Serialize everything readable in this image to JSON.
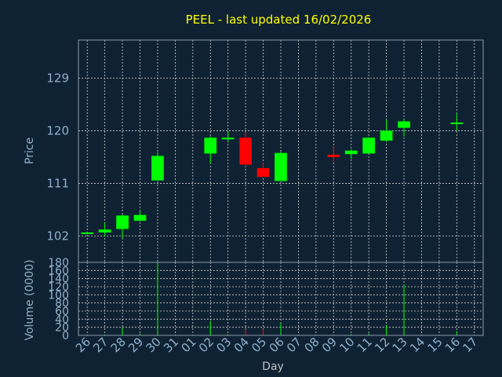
{
  "chart_data": [
    {
      "type": "candlestick",
      "title": "PEEL - last updated 16/02/2026",
      "ylabel": "Price",
      "yticks": [
        102,
        111,
        120,
        129
      ],
      "ylim": [
        97.5,
        135.5
      ],
      "categories": [
        "26",
        "27",
        "28",
        "29",
        "30",
        "31",
        "01",
        "02",
        "03",
        "04",
        "05",
        "06",
        "07",
        "08",
        "09",
        "10",
        "11",
        "12",
        "13",
        "14",
        "15",
        "16",
        "17"
      ],
      "up_color": "#00ff00",
      "down_color": "#ff0000",
      "candles": [
        {
          "day": "26",
          "open": 102.6,
          "close": 102.6,
          "high": 102.7,
          "low": 102.5
        },
        {
          "day": "27",
          "open": 102.6,
          "close": 103.1,
          "high": 104.3,
          "low": 101.9
        },
        {
          "day": "28",
          "open": 103.2,
          "close": 105.5,
          "high": 105.7,
          "low": 101.6
        },
        {
          "day": "29",
          "open": 104.6,
          "close": 105.6,
          "high": 106.4,
          "low": 104.5
        },
        {
          "day": "30",
          "open": 111.5,
          "close": 115.7,
          "high": 116.3,
          "low": 111.5
        },
        {
          "day": "02",
          "open": 116.1,
          "close": 118.8,
          "high": 119.0,
          "low": 114.4
        },
        {
          "day": "03",
          "open": 118.6,
          "close": 118.8,
          "high": 120.0,
          "low": 118.0
        },
        {
          "day": "04",
          "open": 118.8,
          "close": 114.2,
          "high": 119.8,
          "low": 114.2
        },
        {
          "day": "05",
          "open": 113.6,
          "close": 112.1,
          "high": 114.5,
          "low": 112.1
        },
        {
          "day": "06",
          "open": 111.4,
          "close": 116.2,
          "high": 116.4,
          "low": 111.4
        },
        {
          "day": "09",
          "open": 115.9,
          "close": 115.5,
          "high": 117.4,
          "low": 114.6
        },
        {
          "day": "10",
          "open": 116.0,
          "close": 116.6,
          "high": 116.8,
          "low": 115.2
        },
        {
          "day": "11",
          "open": 116.1,
          "close": 118.8,
          "high": 118.9,
          "low": 116.1
        },
        {
          "day": "12",
          "open": 118.3,
          "close": 120.0,
          "high": 121.9,
          "low": 118.1
        },
        {
          "day": "13",
          "open": 120.5,
          "close": 121.6,
          "high": 122.0,
          "low": 119.0
        },
        {
          "day": "16",
          "open": 121.3,
          "close": 121.4,
          "high": 123.0,
          "low": 120.0
        }
      ]
    },
    {
      "type": "bar",
      "ylabel": "Volume (0000)",
      "xlabel": "Day",
      "yticks": [
        0,
        20,
        40,
        60,
        80,
        100,
        120,
        140,
        160,
        180
      ],
      "ylim": [
        0,
        180
      ],
      "categories": [
        "26",
        "27",
        "28",
        "29",
        "30",
        "31",
        "01",
        "02",
        "03",
        "04",
        "05",
        "06",
        "07",
        "08",
        "09",
        "10",
        "11",
        "12",
        "13",
        "14",
        "15",
        "16",
        "17"
      ],
      "volumes": [
        {
          "day": "26",
          "value": 0.3,
          "color": "#00ff00"
        },
        {
          "day": "27",
          "value": 2,
          "color": "#00ff00"
        },
        {
          "day": "28",
          "value": 20,
          "color": "#00ff00"
        },
        {
          "day": "29",
          "value": 5,
          "color": "#00ff00"
        },
        {
          "day": "30",
          "value": 178,
          "color": "#00ff00"
        },
        {
          "day": "02",
          "value": 35,
          "color": "#00ff00"
        },
        {
          "day": "03",
          "value": 3,
          "color": "#00ff00"
        },
        {
          "day": "04",
          "value": 13,
          "color": "#ff0000"
        },
        {
          "day": "05",
          "value": 15,
          "color": "#ff0000"
        },
        {
          "day": "06",
          "value": 30,
          "color": "#00ff00"
        },
        {
          "day": "09",
          "value": 3,
          "color": "#ff0000"
        },
        {
          "day": "10",
          "value": 3,
          "color": "#00ff00"
        },
        {
          "day": "11",
          "value": 5,
          "color": "#00ff00"
        },
        {
          "day": "12",
          "value": 25,
          "color": "#00ff00"
        },
        {
          "day": "13",
          "value": 125,
          "color": "#00ff00"
        },
        {
          "day": "16",
          "value": 10,
          "color": "#00ff00"
        }
      ]
    }
  ]
}
